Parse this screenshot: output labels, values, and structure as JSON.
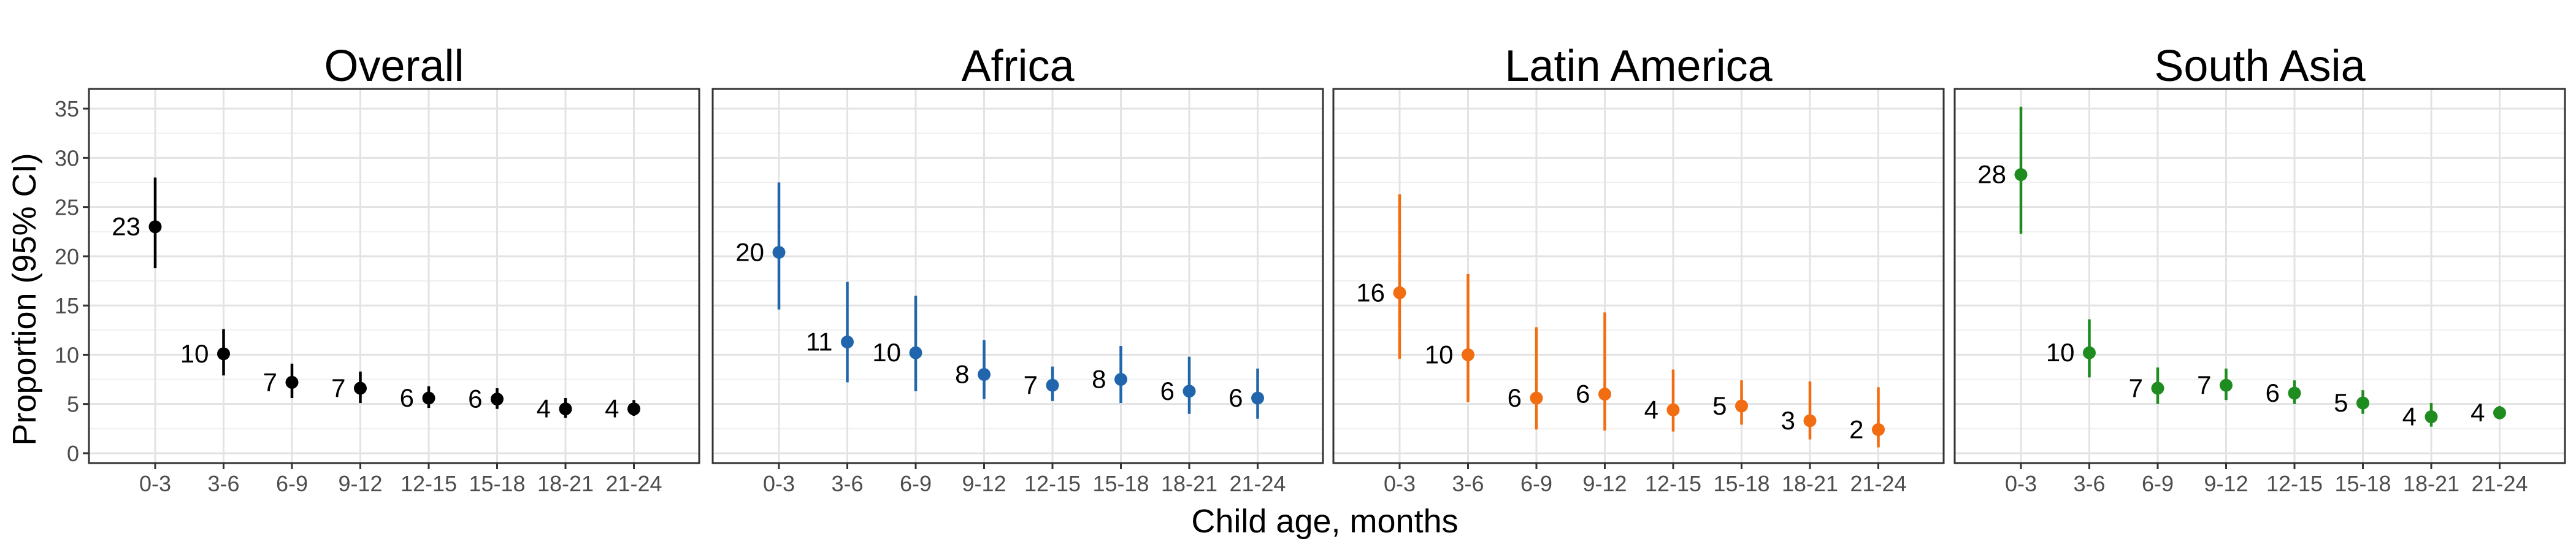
{
  "chart_data": {
    "type": "scatter",
    "variant": "point-range (estimate with 95% CI error bars), faceted",
    "xlabel": "Child age, months",
    "ylabel": "Proportion (95% CI)",
    "categories": [
      "0-3",
      "3-6",
      "6-9",
      "9-12",
      "12-15",
      "15-18",
      "18-21",
      "21-24"
    ],
    "ylim": [
      -1,
      37
    ],
    "yticks": [
      0,
      5,
      10,
      15,
      20,
      25,
      30,
      35
    ],
    "grid": true,
    "legend": "none",
    "panels": [
      {
        "title": "Overall",
        "color": "#000000",
        "values": [
          23,
          10.1,
          7.2,
          6.6,
          5.6,
          5.5,
          4.5,
          4.5
        ],
        "lower": [
          18.8,
          7.9,
          5.6,
          5.1,
          4.6,
          4.5,
          3.6,
          3.8
        ],
        "upper": [
          28.0,
          12.6,
          9.1,
          8.3,
          6.8,
          6.6,
          5.6,
          5.4
        ],
        "labels": [
          "23",
          "10",
          "7",
          "7",
          "6",
          "6",
          "4",
          "4"
        ]
      },
      {
        "title": "Africa",
        "color": "#2166ac",
        "values": [
          20.4,
          11.3,
          10.2,
          8.0,
          6.9,
          7.5,
          6.3,
          5.6
        ],
        "lower": [
          14.6,
          7.2,
          6.3,
          5.5,
          5.3,
          5.1,
          4.0,
          3.5
        ],
        "upper": [
          27.5,
          17.4,
          16.0,
          11.5,
          8.8,
          10.9,
          9.8,
          8.6
        ],
        "labels": [
          "20",
          "11",
          "10",
          "8",
          "7",
          "8",
          "6",
          "6"
        ]
      },
      {
        "title": "Latin America",
        "color": "#f26d12",
        "values": [
          16.3,
          10.0,
          5.6,
          6.0,
          4.4,
          4.8,
          3.3,
          2.4
        ],
        "lower": [
          9.6,
          5.2,
          2.4,
          2.3,
          2.2,
          2.9,
          1.4,
          0.6
        ],
        "upper": [
          26.3,
          18.2,
          12.8,
          14.3,
          8.5,
          7.4,
          7.3,
          6.7
        ],
        "labels": [
          "16",
          "10",
          "6",
          "6",
          "4",
          "5",
          "3",
          "2"
        ]
      },
      {
        "title": "South Asia",
        "color": "#1e8c1e",
        "values": [
          28.3,
          10.2,
          6.6,
          6.9,
          6.1,
          5.1,
          3.7,
          4.1
        ],
        "lower": [
          22.3,
          7.7,
          5.0,
          5.4,
          5.0,
          4.0,
          2.7,
          3.5
        ],
        "upper": [
          35.2,
          13.6,
          8.7,
          8.6,
          7.4,
          6.4,
          5.1,
          4.8
        ],
        "labels": [
          "28",
          "10",
          "7",
          "7",
          "6",
          "5",
          "4",
          "4"
        ]
      }
    ]
  }
}
